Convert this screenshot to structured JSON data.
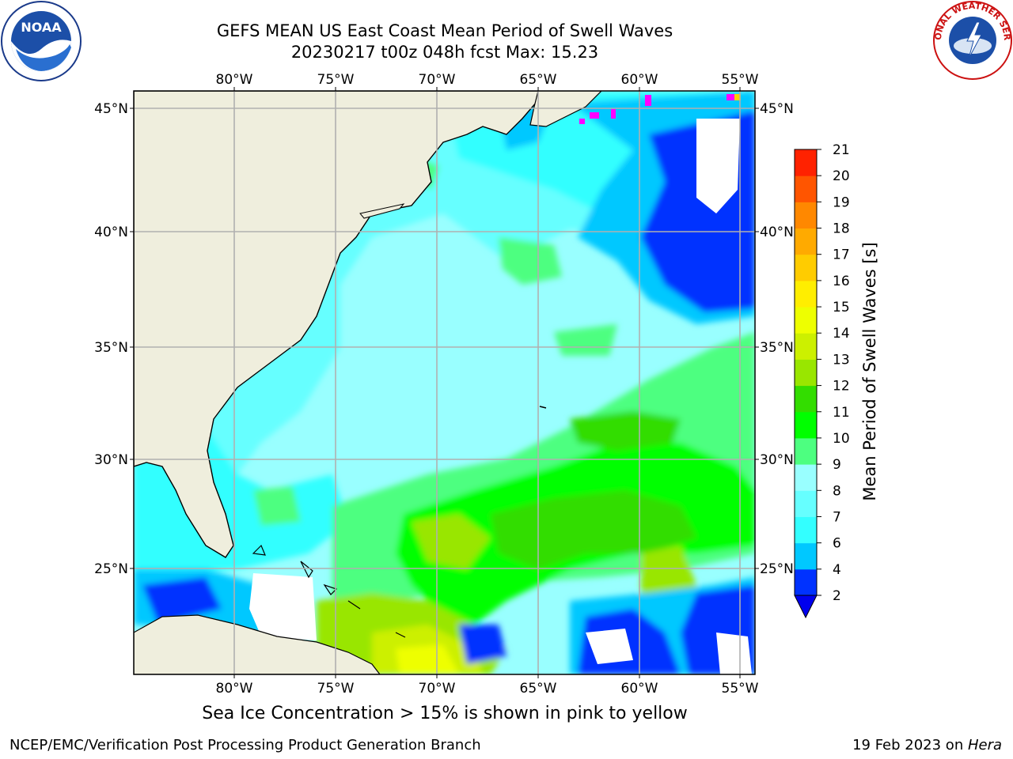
{
  "title_line1": "GEFS MEAN US East Coast Mean Period of Swell Waves",
  "title_line2": "20230217 t00z 048h fcst   Max: 15.23",
  "lon_labels": [
    "80°W",
    "75°W",
    "70°W",
    "65°W",
    "60°W",
    "55°W"
  ],
  "lat_labels": [
    "45°N",
    "40°N",
    "35°N",
    "30°N",
    "25°N"
  ],
  "colorbar": {
    "label": "Mean Period of Swell Waves [s]",
    "ticks": [
      "2",
      "4",
      "6",
      "7",
      "8",
      "9",
      "10",
      "11",
      "12",
      "13",
      "14",
      "15",
      "16",
      "17",
      "18",
      "19",
      "20",
      "21"
    ],
    "colors": [
      "#0032ff",
      "#00c8ff",
      "#33ffff",
      "#66ffff",
      "#99ffff",
      "#4dff80",
      "#00ff00",
      "#33dd00",
      "#99e600",
      "#ccf000",
      "#eeff00",
      "#ffee00",
      "#ffcc00",
      "#ffaa00",
      "#ff8800",
      "#ff5500",
      "#ff2200"
    ],
    "under_color": "#0000ee"
  },
  "ice_note": "Sea Ice Concentration > 15% is shown in pink to yellow",
  "footer_left": "NCEP/EMC/Verification Post Processing Product Generation Branch",
  "footer_date": "19 Feb 2023 on ",
  "footer_system": "Hera",
  "logos": {
    "left": "NOAA",
    "right": "NATIONAL WEATHER SERVICE"
  },
  "colors": {
    "land": "#efeedd",
    "grid": "#b0b0b0"
  }
}
